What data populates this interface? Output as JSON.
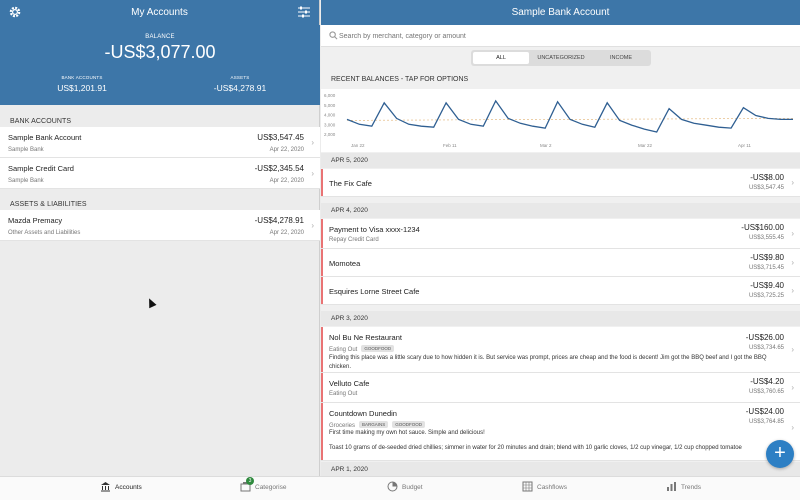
{
  "left": {
    "title": "My Accounts",
    "balance_label": "BALANCE",
    "balance_value": "-US$3,077.00",
    "bank_accounts_label": "BANK ACCOUNTS",
    "bank_accounts_value": "US$1,201.91",
    "assets_label": "ASSETS",
    "assets_value": "-US$4,278.91",
    "section_bank": "BANK ACCOUNTS",
    "section_assets": "ASSETS & LIABILITIES",
    "accounts": [
      {
        "name": "Sample Bank Account",
        "sub": "Sample Bank",
        "amount": "US$3,547.45",
        "date": "Apr 22, 2020"
      },
      {
        "name": "Sample Credit Card",
        "sub": "Sample Bank",
        "amount": "-US$2,345.54",
        "date": "Apr 22, 2020"
      }
    ],
    "assets": [
      {
        "name": "Mazda Premacy",
        "sub": "Other Assets and Liabilities",
        "amount": "-US$4,278.91",
        "date": "Apr 22, 2020"
      }
    ]
  },
  "right": {
    "title": "Sample Bank Account",
    "search_placeholder": "Search by merchant, category or amount",
    "segments": [
      "ALL",
      "UNCATEGORIZED",
      "INCOME"
    ],
    "recent_label": "RECENT BALANCES - TAP FOR OPTIONS",
    "dates": [
      "APR 5, 2020",
      "APR 4, 2020",
      "APR 3, 2020",
      "APR 1, 2020"
    ],
    "transactions": [
      {
        "name": "The Fix Cafe",
        "category": "",
        "amount": "-US$8.00",
        "running": "US$3,547.45"
      },
      {
        "name": "Payment to Visa xxxx-1234",
        "category": "Repay Credit Card",
        "amount": "-US$160.00",
        "running": "US$3,555.45"
      },
      {
        "name": "Momotea",
        "category": "",
        "amount": "-US$9.80",
        "running": "US$3,715.45"
      },
      {
        "name": "Esquires Lorne Street Cafe",
        "category": "",
        "amount": "-US$9.40",
        "running": "US$3,725.25"
      },
      {
        "name": "Nol Bu Ne Restaurant",
        "category": "Eating Out",
        "tags": [
          "GOODFOOD"
        ],
        "amount": "-US$26.00",
        "running": "US$3,734.65",
        "note": "Finding this place was a little scary due to how hidden it is. But service was prompt, prices are cheap and the food is decent! Jim got the BBQ beef and I got the BBQ chicken."
      },
      {
        "name": "Velluto Cafe",
        "category": "Eating Out",
        "amount": "-US$4.20",
        "running": "US$3,760.65"
      },
      {
        "name": "Countdown Dunedin",
        "category": "Groceries",
        "tags": [
          "BARGAINS",
          "GOODFOOD"
        ],
        "amount": "-US$24.00",
        "running": "US$3,764.85",
        "note": "First time making my own hot sauce. Simple and delicious!",
        "note2": "Toast 10 grams of de-seeded dried chillies; simmer in water for 20 minutes and drain; blend with 10 garlic cloves, 1/2 cup vinegar, 1/2 cup chopped tomatoe"
      }
    ]
  },
  "chart_data": {
    "type": "line",
    "y_ticks": [
      "6,000",
      "5,000",
      "4,000",
      "3,000",
      "2,000"
    ],
    "x_ticks": [
      "Jan 22",
      "Feb 11",
      "Mar 2",
      "Mar 22",
      "Apr 11"
    ],
    "ylim": [
      2000,
      6000
    ],
    "series": [
      {
        "values": [
          3500,
          3000,
          2800,
          5200,
          3600,
          3000,
          2800,
          2700,
          5200,
          3500,
          3000,
          2800,
          5400,
          3600,
          3100,
          2800,
          2600,
          5300,
          3500,
          3000,
          2700,
          5200,
          3400,
          2900,
          2500,
          2200,
          4600,
          3500,
          3100,
          2900,
          2700,
          2600,
          4700,
          3900,
          3600,
          3500,
          3500
        ]
      }
    ]
  },
  "tabs": [
    "Accounts",
    "Categorise",
    "Budget",
    "Cashflows",
    "Trends"
  ],
  "categorise_badge": "3",
  "colors": {
    "header_blue": "#3d76a8",
    "accent_red": "#e97374",
    "line_blue": "#2f5f92",
    "fab_blue": "#2d7fc4"
  },
  "icons": [
    "gear-icon",
    "filter-icon",
    "search-icon",
    "chevron-right-icon",
    "plus-icon",
    "accounts-icon",
    "categorise-icon",
    "budget-icon",
    "cashflows-icon",
    "trends-icon"
  ]
}
